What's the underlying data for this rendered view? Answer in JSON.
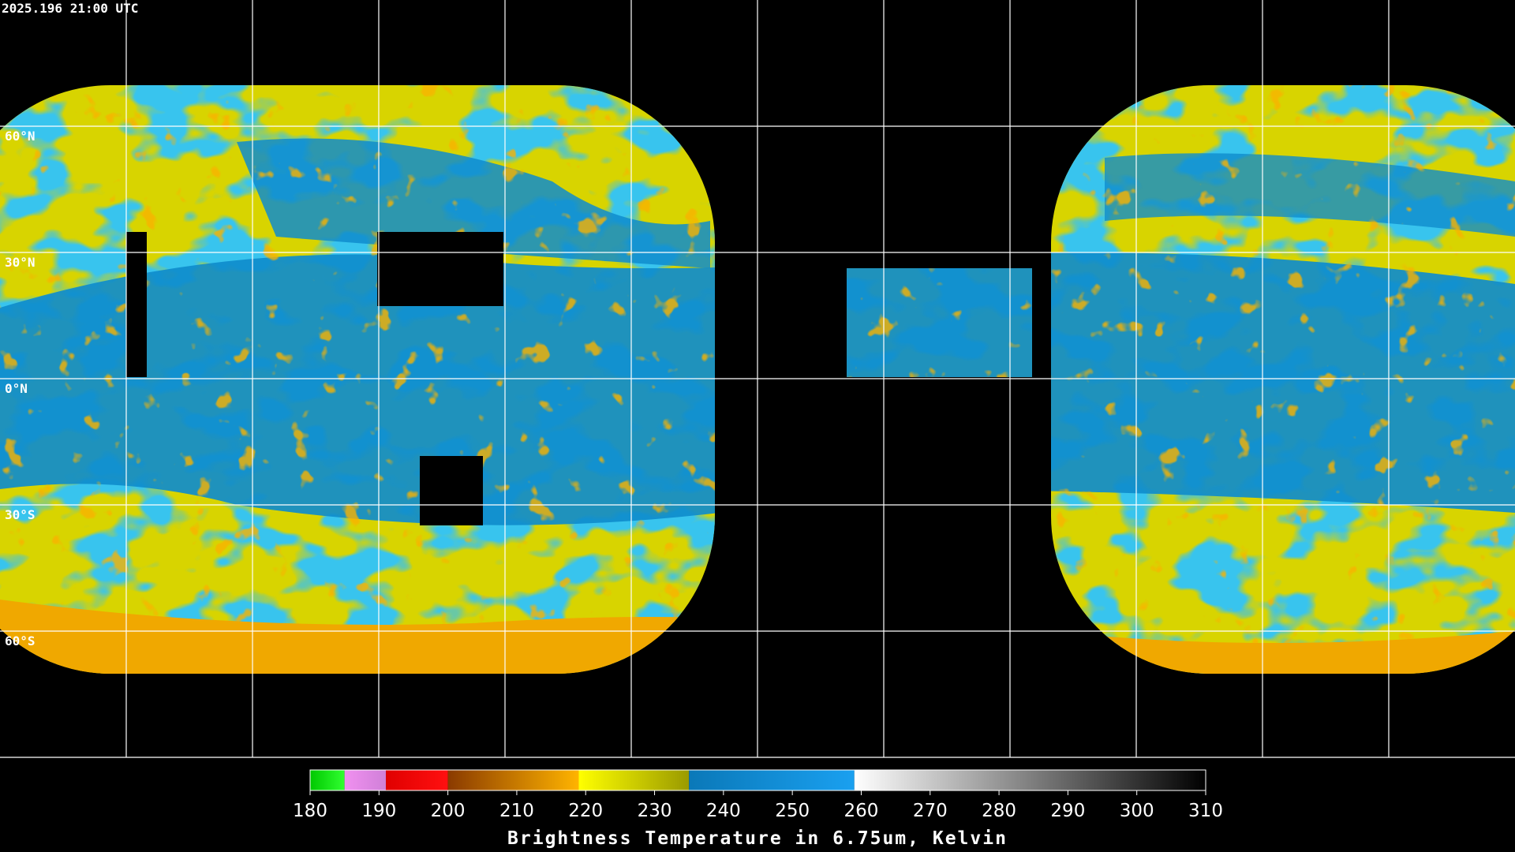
{
  "header": {
    "timestamp": "2025.196 21:00 UTC"
  },
  "map": {
    "lat_labels": [
      "60°N",
      "30°N",
      "0°N",
      "30°S",
      "60°S"
    ]
  },
  "colorbar": {
    "title": "Brightness Temperature in 6.75um, Kelvin",
    "range": [
      180,
      310
    ],
    "ticks": [
      180,
      190,
      200,
      210,
      220,
      230,
      240,
      250,
      260,
      270,
      280,
      290,
      300,
      310
    ],
    "segments": [
      {
        "from": 180,
        "to": 185,
        "colors": [
          "#00c800",
          "#30ff30"
        ]
      },
      {
        "from": 185,
        "to": 191,
        "colors": [
          "#f090f0",
          "#d080d8"
        ]
      },
      {
        "from": 191,
        "to": 200,
        "colors": [
          "#e00000",
          "#ff1010"
        ]
      },
      {
        "from": 200,
        "to": 219,
        "colors": [
          "#8a3a00",
          "#ffb400"
        ]
      },
      {
        "from": 219,
        "to": 235,
        "colors": [
          "#ffff00",
          "#9a9a00"
        ]
      },
      {
        "from": 235,
        "to": 259,
        "colors": [
          "#0a78b8",
          "#1aa0f0"
        ]
      },
      {
        "from": 259,
        "to": 310,
        "colors": [
          "#ffffff",
          "#000000"
        ]
      }
    ]
  }
}
